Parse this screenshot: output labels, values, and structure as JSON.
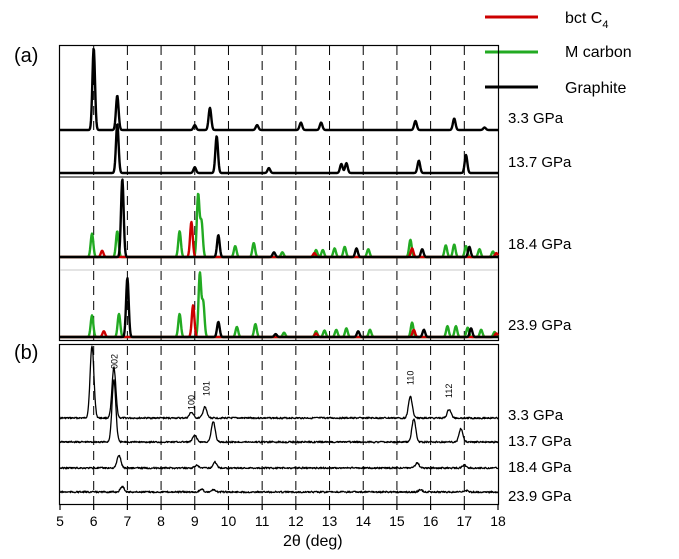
{
  "chart_data": {
    "type": "line",
    "xlabel": "2θ (deg)",
    "xlim": [
      5,
      18
    ],
    "xticks": [
      5,
      6,
      7,
      8,
      9,
      10,
      11,
      12,
      13,
      14,
      15,
      16,
      17,
      18
    ],
    "dashed_guides_at": [
      6,
      7,
      8,
      9,
      10,
      11,
      12,
      13,
      14,
      15,
      16,
      17
    ],
    "legend": {
      "position": "top-right",
      "entries": [
        {
          "label": "bct C",
          "sub": "4",
          "color": "#cc0000"
        },
        {
          "label": "M carbon",
          "color": "#22aa22"
        },
        {
          "label": "Graphite",
          "color": "#000000"
        }
      ]
    },
    "panel_a": {
      "label": "(a)",
      "traces": [
        {
          "pressure": "3.3 GPa",
          "phases": {
            "graphite": [
              [
                6.0,
                1.0
              ],
              [
                6.7,
                0.42
              ],
              [
                9.0,
                0.06
              ],
              [
                9.45,
                0.27
              ],
              [
                10.85,
                0.06
              ],
              [
                12.15,
                0.09
              ],
              [
                12.75,
                0.09
              ],
              [
                15.55,
                0.11
              ],
              [
                16.7,
                0.14
              ],
              [
                17.6,
                0.03
              ]
            ]
          }
        },
        {
          "pressure": "13.7 GPa",
          "phases": {
            "graphite": [
              [
                6.7,
                0.6
              ],
              [
                9.0,
                0.07
              ],
              [
                9.65,
                0.45
              ],
              [
                11.2,
                0.06
              ],
              [
                13.35,
                0.11
              ],
              [
                13.5,
                0.12
              ],
              [
                15.65,
                0.15
              ],
              [
                17.05,
                0.22
              ]
            ]
          }
        },
        {
          "pressure": "18.4 GPa",
          "phases": {
            "graphite": [
              [
                6.85,
                1.0
              ],
              [
                9.7,
                0.28
              ],
              [
                11.35,
                0.06
              ],
              [
                13.8,
                0.11
              ],
              [
                15.75,
                0.1
              ],
              [
                17.15,
                0.13
              ]
            ],
            "m_carbon": [
              [
                5.95,
                0.3
              ],
              [
                6.7,
                0.33
              ],
              [
                8.55,
                0.33
              ],
              [
                9.1,
                0.8
              ],
              [
                9.2,
                0.45
              ],
              [
                10.2,
                0.14
              ],
              [
                10.75,
                0.18
              ],
              [
                11.6,
                0.06
              ],
              [
                12.6,
                0.09
              ],
              [
                12.8,
                0.09
              ],
              [
                13.15,
                0.11
              ],
              [
                13.45,
                0.13
              ],
              [
                14.15,
                0.1
              ],
              [
                15.4,
                0.22
              ],
              [
                16.45,
                0.15
              ],
              [
                16.7,
                0.16
              ],
              [
                17.05,
                0.14
              ],
              [
                17.45,
                0.1
              ],
              [
                17.85,
                0.07
              ]
            ],
            "bct_c4": [
              [
                6.25,
                0.08
              ],
              [
                8.9,
                0.45
              ],
              [
                12.55,
                0.05
              ],
              [
                15.45,
                0.11
              ],
              [
                17.95,
                0.05
              ]
            ]
          }
        },
        {
          "pressure": "23.9 GPa",
          "phases": {
            "graphite": [
              [
                7.0,
                0.82
              ],
              [
                9.7,
                0.21
              ],
              [
                11.4,
                0.04
              ],
              [
                13.85,
                0.08
              ],
              [
                15.8,
                0.1
              ],
              [
                17.2,
                0.12
              ]
            ],
            "m_carbon": [
              [
                5.95,
                0.3
              ],
              [
                6.75,
                0.32
              ],
              [
                8.55,
                0.32
              ],
              [
                9.15,
                0.88
              ],
              [
                9.25,
                0.48
              ],
              [
                10.25,
                0.14
              ],
              [
                10.8,
                0.18
              ],
              [
                11.65,
                0.06
              ],
              [
                12.6,
                0.08
              ],
              [
                12.85,
                0.09
              ],
              [
                13.2,
                0.1
              ],
              [
                13.5,
                0.12
              ],
              [
                14.2,
                0.1
              ],
              [
                15.45,
                0.2
              ],
              [
                16.5,
                0.15
              ],
              [
                16.75,
                0.15
              ],
              [
                17.1,
                0.13
              ],
              [
                17.5,
                0.1
              ],
              [
                17.9,
                0.07
              ]
            ],
            "bct_c4": [
              [
                6.3,
                0.08
              ],
              [
                8.95,
                0.44
              ],
              [
                12.6,
                0.05
              ],
              [
                15.5,
                0.1
              ],
              [
                17.95,
                0.05
              ]
            ]
          }
        }
      ]
    },
    "panel_b": {
      "label": "(b)",
      "traces": [
        {
          "pressure": "3.3 GPa",
          "peaks": [
            [
              5.95,
              1.0
            ],
            [
              6.6,
              0.7
            ],
            [
              8.9,
              0.08
            ],
            [
              9.3,
              0.15
            ],
            [
              15.4,
              0.3
            ],
            [
              16.55,
              0.12
            ]
          ]
        },
        {
          "pressure": "13.7 GPa",
          "peaks": [
            [
              6.6,
              1.0
            ],
            [
              9.0,
              0.11
            ],
            [
              9.55,
              0.33
            ],
            [
              15.5,
              0.37
            ],
            [
              16.9,
              0.22
            ]
          ]
        },
        {
          "pressure": "18.4 GPa",
          "peaks": [
            [
              6.75,
              0.3
            ],
            [
              9.05,
              0.06
            ],
            [
              9.6,
              0.14
            ],
            [
              15.6,
              0.12
            ],
            [
              17.0,
              0.07
            ]
          ]
        },
        {
          "pressure": "23.9 GPa",
          "peaks": [
            [
              6.85,
              0.18
            ],
            [
              9.2,
              0.09
            ],
            [
              9.55,
              0.07
            ],
            [
              15.7,
              0.07
            ],
            [
              17.05,
              0.05
            ]
          ]
        }
      ],
      "peak_labels": [
        {
          "text": "002",
          "x": 6.62
        },
        {
          "text": "100",
          "x": 8.9
        },
        {
          "text": "101",
          "x": 9.35
        },
        {
          "text": "110",
          "x": 15.4
        },
        {
          "text": "112",
          "x": 16.55
        }
      ]
    }
  }
}
